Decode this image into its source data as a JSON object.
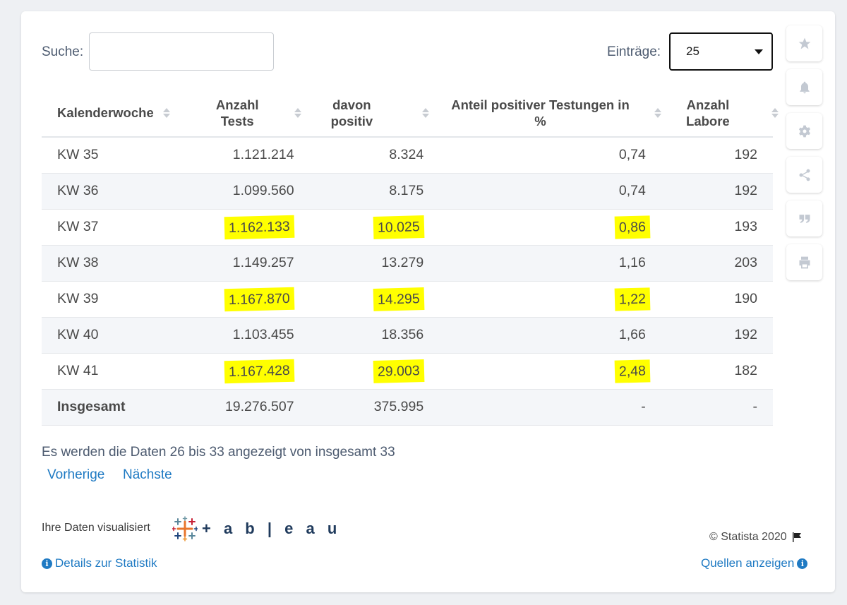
{
  "search": {
    "label": "Suche:",
    "value": "",
    "placeholder": ""
  },
  "entries": {
    "label": "Einträge:",
    "selected": "25"
  },
  "sidebar": {
    "items": [
      {
        "icon": "star-icon"
      },
      {
        "icon": "bell-icon"
      },
      {
        "icon": "gear-icon"
      },
      {
        "icon": "share-icon"
      },
      {
        "icon": "quote-icon"
      },
      {
        "icon": "print-icon"
      }
    ]
  },
  "table": {
    "headers": [
      "Kalenderwoche",
      "Anzahl Tests",
      "davon positiv",
      "Anteil positiver Testungen in %",
      "Anzahl Labore"
    ],
    "rows": [
      {
        "week": "KW 35",
        "tests": "1.121.214",
        "positive": "8.324",
        "share": "0,74",
        "labs": "192"
      },
      {
        "week": "KW 36",
        "tests": "1.099.560",
        "positive": "8.175",
        "share": "0,74",
        "labs": "192"
      },
      {
        "week": "KW 37",
        "tests": "1.162.133",
        "positive": "10.025",
        "share": "0,86",
        "labs": "193"
      },
      {
        "week": "KW 38",
        "tests": "1.149.257",
        "positive": "13.279",
        "share": "1,16",
        "labs": "203"
      },
      {
        "week": "KW 39",
        "tests": "1.167.870",
        "positive": "14.295",
        "share": "1,22",
        "labs": "190"
      },
      {
        "week": "KW 40",
        "tests": "1.103.455",
        "positive": "18.356",
        "share": "1,66",
        "labs": "192"
      },
      {
        "week": "KW 41",
        "tests": "1.167.428",
        "positive": "29.003",
        "share": "2,48",
        "labs": "182"
      },
      {
        "week": "Insgesamt",
        "tests": "19.276.507",
        "positive": "375.995",
        "share": "-",
        "labs": "-"
      }
    ],
    "highlight_color": "#ffff00"
  },
  "pagination": {
    "info": "Es werden die Daten 26 bis 33 angezeigt von insgesamt 33",
    "prev": "Vorherige",
    "next": "Nächste"
  },
  "footer": {
    "viz_label": "Ihre Daten visualisiert",
    "tableau": "+ a b | e a u",
    "copyright": "© Statista 2020",
    "details": "Details zur Statistik",
    "sources": "Quellen anzeigen"
  },
  "colors": {
    "link": "#1f7ac3",
    "label": "#4d5b70"
  }
}
